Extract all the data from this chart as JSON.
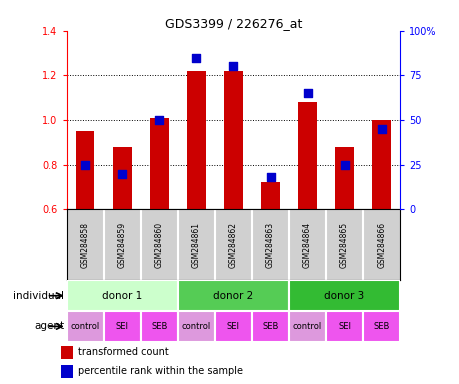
{
  "title": "GDS3399 / 226276_at",
  "samples": [
    "GSM284858",
    "GSM284859",
    "GSM284860",
    "GSM284861",
    "GSM284862",
    "GSM284863",
    "GSM284864",
    "GSM284865",
    "GSM284866"
  ],
  "transformed_count": [
    0.95,
    0.88,
    1.01,
    1.22,
    1.22,
    0.72,
    1.08,
    0.88,
    1.0
  ],
  "percentile_rank": [
    25,
    20,
    50,
    85,
    80,
    18,
    65,
    25,
    45
  ],
  "ylim_left": [
    0.6,
    1.4
  ],
  "ylim_right": [
    0,
    100
  ],
  "yticks_left": [
    0.6,
    0.8,
    1.0,
    1.2,
    1.4
  ],
  "yticks_right": [
    0,
    25,
    50,
    75,
    100
  ],
  "yticklabels_right": [
    "0",
    "25",
    "50",
    "75",
    "100%"
  ],
  "bar_color": "#cc0000",
  "dot_color": "#0000cc",
  "dot_size": 30,
  "individuals": [
    {
      "label": "donor 1",
      "span": [
        0,
        3
      ],
      "color": "#ccffcc"
    },
    {
      "label": "donor 2",
      "span": [
        3,
        6
      ],
      "color": "#55cc55"
    },
    {
      "label": "donor 3",
      "span": [
        6,
        9
      ],
      "color": "#33bb33"
    }
  ],
  "agents": [
    "control",
    "SEI",
    "SEB",
    "control",
    "SEI",
    "SEB",
    "control",
    "SEI",
    "SEB"
  ],
  "agent_color_control": "#dd99dd",
  "agent_color_other": "#ee55ee",
  "row_label_individual": "individual",
  "row_label_agent": "agent",
  "legend_items": [
    {
      "label": "transformed count",
      "color": "#cc0000"
    },
    {
      "label": "percentile rank within the sample",
      "color": "#0000cc"
    }
  ],
  "sample_bg_color": "#d0d0d0"
}
